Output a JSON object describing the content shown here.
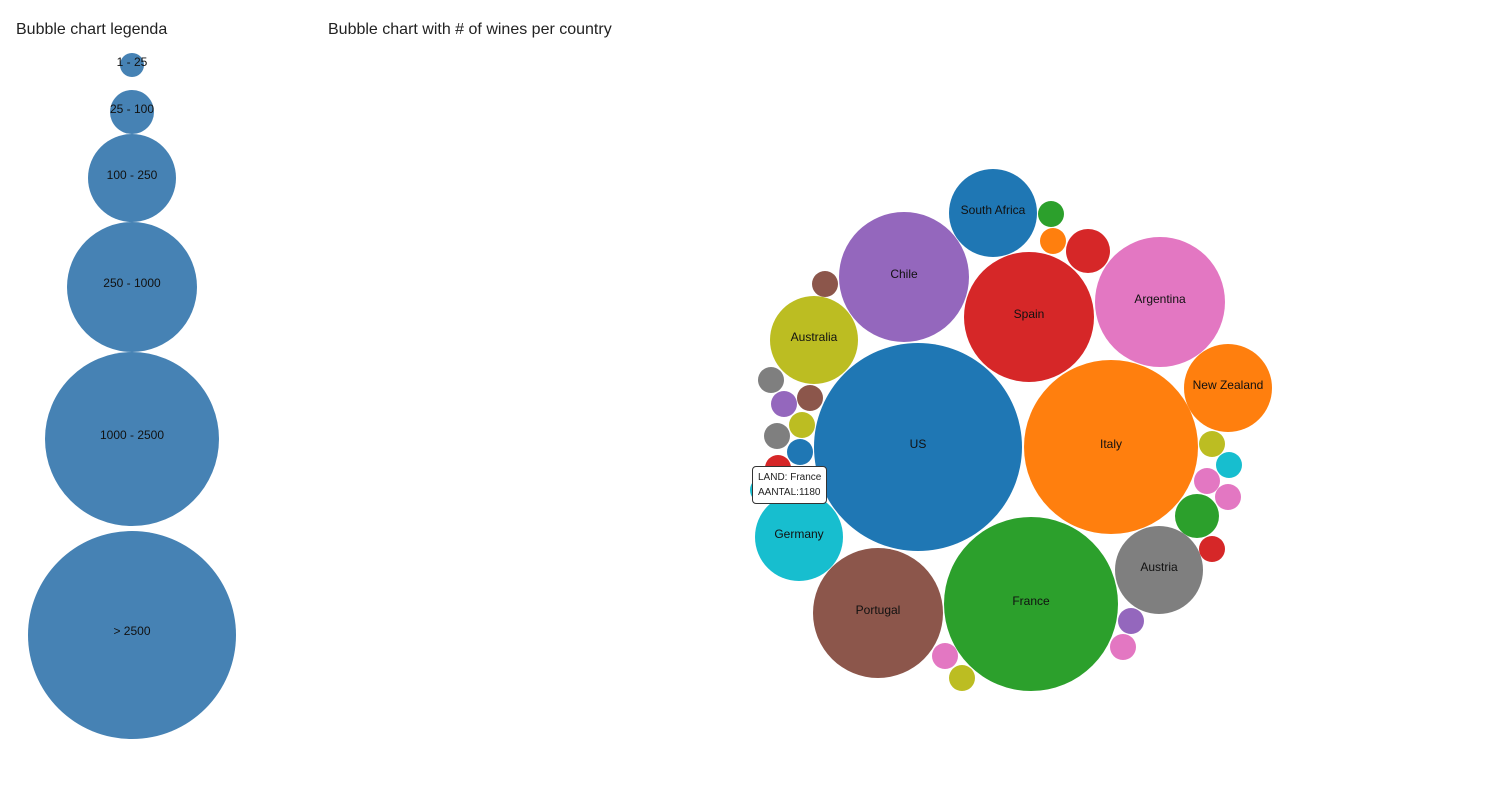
{
  "legend_title": "Bubble chart legenda",
  "chart_title": "Bubble chart with # of wines per country",
  "colors": {
    "legend_fill": "#4682b4"
  },
  "legend": [
    {
      "label": "1 - 25"
    },
    {
      "label": "25 - 100"
    },
    {
      "label": "100 - 250"
    },
    {
      "label": "250 - 1000"
    },
    {
      "label": "1000 - 2500"
    },
    {
      "label": "> 2500"
    }
  ],
  "tooltip": {
    "land": "LAND: France",
    "aantal": "AANTAL:1180"
  },
  "chart_data": {
    "type": "bubble",
    "title": "Bubble chart with # of wines per country",
    "labeled_countries": [
      {
        "name": "US",
        "color": "#1f77b4"
      },
      {
        "name": "Italy",
        "color": "#ff7f0e"
      },
      {
        "name": "France",
        "color": "#2ca02c",
        "value": 1180
      },
      {
        "name": "Portugal",
        "color": "#8c564b"
      },
      {
        "name": "Spain",
        "color": "#d62728"
      },
      {
        "name": "Chile",
        "color": "#9467bd"
      },
      {
        "name": "Argentina",
        "color": "#e377c2"
      },
      {
        "name": "Austria",
        "color": "#7f7f7f"
      },
      {
        "name": "Australia",
        "color": "#bcbd22"
      },
      {
        "name": "Germany",
        "color": "#17becf"
      },
      {
        "name": "South Africa",
        "color": "#1f77b4"
      },
      {
        "name": "New Zealand",
        "color": "#ff7f0e"
      }
    ],
    "unlabeled_bubble_colors": [
      "#2ca02c",
      "#ff7f0e",
      "#d62728",
      "#bcbd22",
      "#17becf",
      "#e377c2",
      "#e377c2",
      "#2ca02c",
      "#d62728",
      "#9467bd",
      "#e377c2",
      "#e377c2",
      "#bcbd22",
      "#8c564b",
      "#7f7f7f",
      "#9467bd",
      "#8c564b",
      "#7f7f7f",
      "#bcbd22",
      "#1f77b4",
      "#d62728",
      "#17becf"
    ]
  }
}
